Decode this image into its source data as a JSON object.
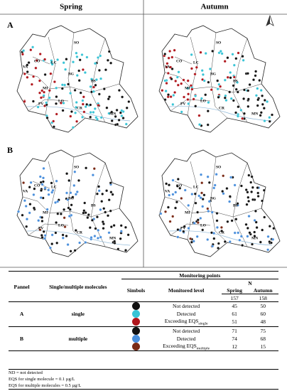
{
  "header": {
    "left": "Spring",
    "right": "Autumn"
  },
  "panels": [
    "A",
    "B"
  ],
  "map_labels": [
    "SO",
    "VA",
    "CO",
    "LC",
    "BG",
    "BS",
    "MI",
    "LO",
    "PV",
    "CR",
    "MN"
  ],
  "symbol_colors": {
    "A": [
      "#111111",
      "#38c4d6",
      "#b0161c"
    ],
    "B": [
      "#111111",
      "#4a8fdc",
      "#7a2a16"
    ]
  },
  "table": {
    "headers": {
      "pannel": "Pannel",
      "molecules": "Single/multiple molecules",
      "monitoring": "Monitoring points",
      "symbols": "Simbols",
      "level": "Monitored level",
      "n": "N",
      "spring": "Spring",
      "autumn": "Autumn"
    },
    "totals": [
      157,
      158
    ],
    "groups": [
      {
        "pannel": "A",
        "molecules": "single",
        "rows": [
          {
            "level": "Not detected",
            "spring": 45,
            "autumn": 50
          },
          {
            "level": "Detected",
            "spring": 61,
            "autumn": 60
          },
          {
            "level": "Exceeding EQS",
            "sub": "single",
            "spring": 51,
            "autumn": 48
          }
        ]
      },
      {
        "pannel": "B",
        "molecules": "multiple",
        "rows": [
          {
            "level": "Not detected",
            "spring": 71,
            "autumn": 75
          },
          {
            "level": "Detected",
            "spring": 74,
            "autumn": 68
          },
          {
            "level": "Exceeding EQS",
            "sub": "multiple",
            "spring": 12,
            "autumn": 15
          }
        ]
      }
    ]
  },
  "footnotes": [
    "ND = not detected",
    "EQS for single molecule = 0.1 µg/L",
    "EQS for multiple molecules = 0.5 µg/L"
  ]
}
